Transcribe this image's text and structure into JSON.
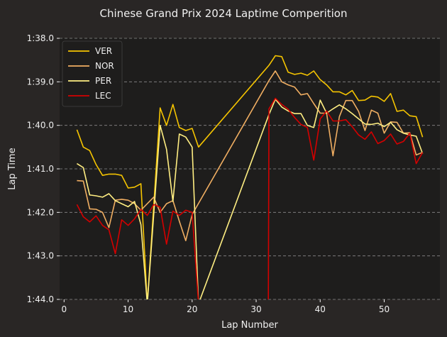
{
  "chart_data": {
    "type": "line",
    "title": "Chinese Grand Prix 2024 Laptime Comperition",
    "xlabel": "Lap Number",
    "ylabel": "Lap Time",
    "xlim": [
      -0.7,
      58.7
    ],
    "ylim": [
      104.0,
      98.0
    ],
    "y_inverted": true,
    "x_ticks": [
      0,
      10,
      20,
      30,
      40,
      50
    ],
    "y_ticks": [
      98,
      99,
      100,
      101,
      102,
      103,
      104
    ],
    "y_tick_labels": [
      "1:38.0",
      "1:39.0",
      "1:40.0",
      "1:41.0",
      "1:42.0",
      "1:43.0",
      "1:44.0"
    ],
    "grid": "horizontal dashed",
    "legend_position": "top-left",
    "colors": {
      "background": "#292625",
      "axes_background": "#1e1d1c",
      "text": "#f0f0f0",
      "grid": "#8a8a8a"
    },
    "series": [
      {
        "name": "VER",
        "color": "#f5c400",
        "points": [
          [
            2,
            100.1
          ],
          [
            3,
            100.5
          ],
          [
            4,
            100.58
          ],
          [
            5,
            100.9
          ],
          [
            6,
            101.15
          ],
          [
            7,
            101.12
          ],
          [
            8,
            101.12
          ],
          [
            9,
            101.15
          ],
          [
            10,
            101.44
          ],
          [
            11,
            101.42
          ],
          [
            12,
            101.34
          ],
          [
            13,
            104.1
          ],
          [
            15,
            99.6
          ],
          [
            16,
            100.0
          ],
          [
            17,
            99.52
          ],
          [
            18,
            100.05
          ],
          [
            19,
            100.12
          ],
          [
            20,
            100.07
          ],
          [
            21,
            100.5
          ],
          [
            32,
            98.62
          ],
          [
            33,
            98.4
          ],
          [
            34,
            98.42
          ],
          [
            35,
            98.78
          ],
          [
            36,
            98.83
          ],
          [
            37,
            98.8
          ],
          [
            38,
            98.85
          ],
          [
            39,
            98.75
          ],
          [
            40,
            98.95
          ],
          [
            41,
            99.07
          ],
          [
            42,
            99.23
          ],
          [
            43,
            99.23
          ],
          [
            44,
            99.3
          ],
          [
            45,
            99.2
          ],
          [
            46,
            99.43
          ],
          [
            47,
            99.42
          ],
          [
            48,
            99.33
          ],
          [
            49,
            99.35
          ],
          [
            50,
            99.45
          ],
          [
            51,
            99.27
          ],
          [
            52,
            99.68
          ],
          [
            53,
            99.65
          ],
          [
            54,
            99.78
          ],
          [
            55,
            99.8
          ],
          [
            56,
            100.27
          ]
        ]
      },
      {
        "name": "NOR",
        "color": "#f0ae62",
        "points": [
          [
            2,
            101.27
          ],
          [
            3,
            101.28
          ],
          [
            4,
            101.92
          ],
          [
            5,
            101.93
          ],
          [
            6,
            102.0
          ],
          [
            7,
            102.35
          ],
          [
            8,
            101.72
          ],
          [
            9,
            101.7
          ],
          [
            10,
            101.72
          ],
          [
            11,
            101.8
          ],
          [
            12,
            101.95
          ],
          [
            13,
            101.8
          ],
          [
            14,
            101.65
          ],
          [
            15,
            102.0
          ],
          [
            16,
            101.8
          ],
          [
            17,
            101.73
          ],
          [
            18,
            102.2
          ],
          [
            19,
            102.65
          ],
          [
            20,
            102.05
          ],
          [
            32,
            98.97
          ],
          [
            33,
            98.75
          ],
          [
            34,
            99.0
          ],
          [
            35,
            99.07
          ],
          [
            36,
            99.12
          ],
          [
            37,
            99.3
          ],
          [
            38,
            99.27
          ],
          [
            39,
            99.5
          ],
          [
            40,
            99.72
          ],
          [
            41,
            99.72
          ],
          [
            42,
            100.7
          ],
          [
            43,
            99.8
          ],
          [
            44,
            99.43
          ],
          [
            45,
            99.43
          ],
          [
            46,
            99.68
          ],
          [
            47,
            100.12
          ],
          [
            48,
            99.65
          ],
          [
            49,
            99.72
          ],
          [
            50,
            100.18
          ],
          [
            51,
            99.92
          ],
          [
            52,
            99.93
          ],
          [
            53,
            100.18
          ],
          [
            54,
            100.17
          ],
          [
            55,
            100.68
          ],
          [
            56,
            100.62
          ]
        ]
      },
      {
        "name": "PER",
        "color": "#ffee82",
        "points": [
          [
            2,
            100.88
          ],
          [
            3,
            100.97
          ],
          [
            4,
            101.6
          ],
          [
            5,
            101.62
          ],
          [
            6,
            101.65
          ],
          [
            7,
            101.57
          ],
          [
            8,
            101.73
          ],
          [
            9,
            101.8
          ],
          [
            10,
            101.87
          ],
          [
            11,
            101.75
          ],
          [
            12,
            102.28
          ],
          [
            13,
            104.1
          ],
          [
            15,
            100.0
          ],
          [
            16,
            100.55
          ],
          [
            17,
            101.75
          ],
          [
            18,
            100.2
          ],
          [
            19,
            100.27
          ],
          [
            20,
            100.5
          ],
          [
            21,
            104.1
          ],
          [
            32,
            99.75
          ],
          [
            33,
            99.4
          ],
          [
            34,
            99.58
          ],
          [
            35,
            99.67
          ],
          [
            36,
            99.73
          ],
          [
            37,
            99.73
          ],
          [
            38,
            100.0
          ],
          [
            39,
            100.05
          ],
          [
            40,
            99.42
          ],
          [
            41,
            99.72
          ],
          [
            42,
            99.62
          ],
          [
            43,
            99.53
          ],
          [
            44,
            99.62
          ],
          [
            45,
            99.73
          ],
          [
            46,
            99.85
          ],
          [
            47,
            99.97
          ],
          [
            48,
            99.98
          ],
          [
            49,
            99.95
          ],
          [
            50,
            100.03
          ],
          [
            51,
            99.93
          ],
          [
            52,
            100.1
          ],
          [
            53,
            100.18
          ],
          [
            54,
            100.22
          ],
          [
            55,
            100.25
          ],
          [
            56,
            100.65
          ]
        ]
      },
      {
        "name": "LEC",
        "color": "#d40000",
        "points": [
          [
            2,
            101.82
          ],
          [
            3,
            102.1
          ],
          [
            4,
            102.22
          ],
          [
            5,
            102.08
          ],
          [
            6,
            102.3
          ],
          [
            7,
            102.4
          ],
          [
            8,
            102.95
          ],
          [
            9,
            102.17
          ],
          [
            10,
            102.3
          ],
          [
            11,
            102.15
          ],
          [
            12,
            101.93
          ],
          [
            13,
            102.07
          ],
          [
            14,
            101.82
          ],
          [
            15,
            101.88
          ],
          [
            16,
            102.73
          ],
          [
            17,
            101.97
          ],
          [
            18,
            102.07
          ],
          [
            19,
            101.95
          ],
          [
            20,
            102.0
          ],
          [
            21,
            104.1
          ],
          [
            31.9,
            104.1
          ],
          [
            32,
            99.62
          ],
          [
            33,
            99.38
          ],
          [
            34,
            99.52
          ],
          [
            35,
            99.63
          ],
          [
            36,
            99.82
          ],
          [
            37,
            99.98
          ],
          [
            38,
            100.05
          ],
          [
            39,
            100.8
          ],
          [
            40,
            99.85
          ],
          [
            41,
            99.67
          ],
          [
            42,
            99.9
          ],
          [
            43,
            99.9
          ],
          [
            44,
            99.87
          ],
          [
            45,
            100.03
          ],
          [
            46,
            100.22
          ],
          [
            47,
            100.32
          ],
          [
            48,
            100.15
          ],
          [
            49,
            100.42
          ],
          [
            50,
            100.35
          ],
          [
            51,
            100.2
          ],
          [
            52,
            100.43
          ],
          [
            53,
            100.37
          ],
          [
            54,
            100.18
          ],
          [
            55,
            100.88
          ],
          [
            56,
            100.62
          ]
        ]
      }
    ]
  }
}
